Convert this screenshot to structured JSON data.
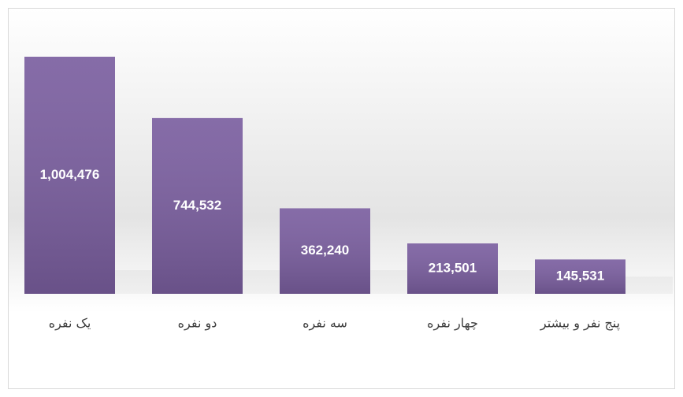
{
  "chart_data": {
    "type": "bar",
    "categories": [
      "یک نفره",
      "دو نفره",
      "سه نفره",
      "چهار نفره",
      "پنج نفر و بیشتر"
    ],
    "values": [
      1004476,
      744532,
      362240,
      213501,
      145531
    ],
    "value_labels": [
      "1,004,476",
      "744,532",
      "362,240",
      "213,501",
      "145,531"
    ],
    "color": "#7b5fa0"
  }
}
